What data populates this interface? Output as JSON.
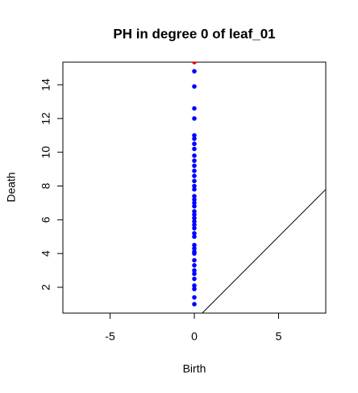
{
  "chart_data": {
    "type": "scatter",
    "title": "PH in degree 0 of leaf_01",
    "xlabel": "Birth",
    "ylabel": "Death",
    "xlim": [
      -7.8,
      7.8
    ],
    "ylim": [
      0.47,
      15.34
    ],
    "xticks": [
      -5,
      0,
      5
    ],
    "yticks": [
      2,
      4,
      6,
      8,
      10,
      12,
      14
    ],
    "diagonal": true,
    "series": [
      {
        "color": "#0000ff",
        "x": [
          0,
          0,
          0,
          0,
          0,
          0,
          0,
          0,
          0,
          0,
          0,
          0,
          0,
          0,
          0,
          0,
          0,
          0,
          0,
          0,
          0,
          0,
          0,
          0,
          0,
          0,
          0,
          0,
          0,
          0,
          0,
          0,
          0,
          0,
          0,
          0,
          0,
          0,
          0,
          0,
          0
        ],
        "values": [
          1.0,
          1.4,
          1.9,
          2.1,
          2.5,
          2.8,
          3.0,
          3.3,
          3.6,
          4.0,
          4.1,
          4.3,
          4.5,
          5.0,
          5.2,
          5.5,
          5.7,
          5.9,
          6.1,
          6.3,
          6.5,
          6.8,
          7.0,
          7.2,
          7.4,
          7.8,
          8.0,
          8.3,
          8.6,
          8.9,
          9.2,
          9.5,
          9.8,
          10.2,
          10.5,
          10.8,
          11.0,
          12.0,
          12.6,
          13.9,
          14.8
        ]
      },
      {
        "color": "#ff0000",
        "x": [
          0
        ],
        "values": [
          15.34
        ]
      }
    ]
  }
}
